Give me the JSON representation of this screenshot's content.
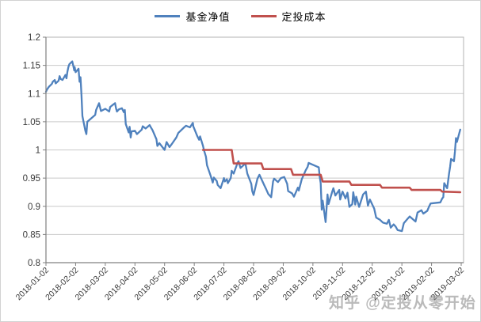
{
  "legend": {
    "items": [
      {
        "label": "基金净值",
        "color": "#4f81bd"
      },
      {
        "label": "定投成本",
        "color": "#c0504d"
      }
    ]
  },
  "watermark": {
    "text": "知乎 @定投从零开始"
  },
  "colors": {
    "plot_border": "#b3b3b3",
    "gridline": "#c9c9c9",
    "axis": "#808080",
    "tick_label": "#3a3a3a",
    "background": "#ffffff"
  },
  "chart_data": {
    "type": "line",
    "title": "",
    "xlabel": "",
    "ylabel": "",
    "grid": true,
    "legend_position": "top",
    "x_axis": {
      "tick_labels": [
        "2018-01-02",
        "2018-02-02",
        "2018-03-02",
        "2018-04-02",
        "2018-05-02",
        "2018-06-02",
        "2018-07-02",
        "2018-08-02",
        "2018-09-02",
        "2018-10-02",
        "2018-11-02",
        "2018-12-02",
        "2019-01-02",
        "2019-02-02",
        "2019-03-02"
      ],
      "label_rotation": -45
    },
    "y_axis": {
      "min": 0.8,
      "max": 1.2,
      "ticks": [
        1.2,
        1.15,
        1.1,
        1.05,
        1.0,
        0.95,
        0.9,
        0.85,
        0.8
      ],
      "tick_labels": [
        "1.2",
        "1.15",
        "1.1",
        "1.05",
        "1",
        "0.95",
        "0.9",
        "0.85",
        "0.8"
      ]
    },
    "series": [
      {
        "name": "基金净值",
        "color": "#4f81bd",
        "width": 2.3,
        "points": [
          [
            "2018-01-02",
            1.103
          ],
          [
            "2018-01-03",
            1.107
          ],
          [
            "2018-01-05",
            1.112
          ],
          [
            "2018-01-08",
            1.117
          ],
          [
            "2018-01-09",
            1.121
          ],
          [
            "2018-01-11",
            1.124
          ],
          [
            "2018-01-12",
            1.118
          ],
          [
            "2018-01-15",
            1.123
          ],
          [
            "2018-01-16",
            1.131
          ],
          [
            "2018-01-17",
            1.126
          ],
          [
            "2018-01-19",
            1.124
          ],
          [
            "2018-01-22",
            1.133
          ],
          [
            "2018-01-23",
            1.127
          ],
          [
            "2018-01-24",
            1.139
          ],
          [
            "2018-01-25",
            1.147
          ],
          [
            "2018-01-26",
            1.152
          ],
          [
            "2018-01-29",
            1.157
          ],
          [
            "2018-01-30",
            1.149
          ],
          [
            "2018-01-31",
            1.141
          ],
          [
            "2018-02-01",
            1.147
          ],
          [
            "2018-02-02",
            1.138
          ],
          [
            "2018-02-05",
            1.144
          ],
          [
            "2018-02-06",
            1.121
          ],
          [
            "2018-02-07",
            1.129
          ],
          [
            "2018-02-08",
            1.098
          ],
          [
            "2018-02-09",
            1.06
          ],
          [
            "2018-02-12",
            1.034
          ],
          [
            "2018-02-13",
            1.028
          ],
          [
            "2018-02-14",
            1.05
          ],
          [
            "2018-02-22",
            1.062
          ],
          [
            "2018-02-23",
            1.071
          ],
          [
            "2018-02-26",
            1.083
          ],
          [
            "2018-02-27",
            1.076
          ],
          [
            "2018-02-28",
            1.069
          ],
          [
            "2018-03-02",
            1.073
          ],
          [
            "2018-03-06",
            1.068
          ],
          [
            "2018-03-07",
            1.076
          ],
          [
            "2018-03-09",
            1.079
          ],
          [
            "2018-03-12",
            1.083
          ],
          [
            "2018-03-13",
            1.074
          ],
          [
            "2018-03-14",
            1.068
          ],
          [
            "2018-03-16",
            1.072
          ],
          [
            "2018-03-19",
            1.074
          ],
          [
            "2018-03-21",
            1.067
          ],
          [
            "2018-03-22",
            1.071
          ],
          [
            "2018-03-23",
            1.046
          ],
          [
            "2018-03-26",
            1.031
          ],
          [
            "2018-03-27",
            1.041
          ],
          [
            "2018-03-28",
            1.022
          ],
          [
            "2018-03-29",
            1.033
          ],
          [
            "2018-04-02",
            1.034
          ],
          [
            "2018-04-04",
            1.028
          ],
          [
            "2018-04-09",
            1.036
          ],
          [
            "2018-04-10",
            1.042
          ],
          [
            "2018-04-13",
            1.038
          ],
          [
            "2018-04-17",
            1.044
          ],
          [
            "2018-04-18",
            1.041
          ],
          [
            "2018-04-20",
            1.035
          ],
          [
            "2018-04-24",
            1.019
          ],
          [
            "2018-04-25",
            1.007
          ],
          [
            "2018-04-27",
            1.012
          ],
          [
            "2018-05-02",
            1.0
          ],
          [
            "2018-05-04",
            1.014
          ],
          [
            "2018-05-07",
            1.005
          ],
          [
            "2018-05-10",
            1.012
          ],
          [
            "2018-05-14",
            1.022
          ],
          [
            "2018-05-16",
            1.03
          ],
          [
            "2018-05-22",
            1.04
          ],
          [
            "2018-05-24",
            1.043
          ],
          [
            "2018-05-28",
            1.04
          ],
          [
            "2018-05-31",
            1.048
          ],
          [
            "2018-06-01",
            1.042
          ],
          [
            "2018-06-05",
            1.025
          ],
          [
            "2018-06-07",
            1.018
          ],
          [
            "2018-06-08",
            1.024
          ],
          [
            "2018-06-11",
            1.007
          ],
          [
            "2018-06-12",
            0.999
          ],
          [
            "2018-06-14",
            0.988
          ],
          [
            "2018-06-15",
            0.973
          ],
          [
            "2018-06-19",
            0.953
          ],
          [
            "2018-06-21",
            0.942
          ],
          [
            "2018-06-22",
            0.951
          ],
          [
            "2018-06-25",
            0.945
          ],
          [
            "2018-06-26",
            0.938
          ],
          [
            "2018-06-29",
            0.932
          ],
          [
            "2018-07-02",
            0.95
          ],
          [
            "2018-07-03",
            0.944
          ],
          [
            "2018-07-05",
            0.948
          ],
          [
            "2018-07-06",
            0.941
          ],
          [
            "2018-07-09",
            0.95
          ],
          [
            "2018-07-10",
            0.963
          ],
          [
            "2018-07-12",
            0.958
          ],
          [
            "2018-07-16",
            0.977
          ],
          [
            "2018-07-17",
            0.98
          ],
          [
            "2018-07-19",
            0.968
          ],
          [
            "2018-07-24",
            0.976
          ],
          [
            "2018-07-26",
            0.958
          ],
          [
            "2018-07-30",
            0.94
          ],
          [
            "2018-07-31",
            0.927
          ],
          [
            "2018-08-02",
            0.92
          ],
          [
            "2018-08-06",
            0.949
          ],
          [
            "2018-08-08",
            0.956
          ],
          [
            "2018-08-13",
            0.937
          ],
          [
            "2018-08-15",
            0.93
          ],
          [
            "2018-08-17",
            0.922
          ],
          [
            "2018-08-20",
            0.916
          ],
          [
            "2018-08-22",
            0.944
          ],
          [
            "2018-08-23",
            0.949
          ],
          [
            "2018-08-27",
            0.943
          ],
          [
            "2018-08-30",
            0.95
          ],
          [
            "2018-09-03",
            0.952
          ],
          [
            "2018-09-06",
            0.94
          ],
          [
            "2018-09-07",
            0.927
          ],
          [
            "2018-09-11",
            0.923
          ],
          [
            "2018-09-13",
            0.917
          ],
          [
            "2018-09-17",
            0.933
          ],
          [
            "2018-09-18",
            0.928
          ],
          [
            "2018-09-21",
            0.948
          ],
          [
            "2018-09-25",
            0.964
          ],
          [
            "2018-09-27",
            0.97
          ],
          [
            "2018-09-28",
            0.977
          ],
          [
            "2018-10-08",
            0.969
          ],
          [
            "2018-10-09",
            0.952
          ],
          [
            "2018-10-10",
            0.941
          ],
          [
            "2018-10-11",
            0.894
          ],
          [
            "2018-10-12",
            0.91
          ],
          [
            "2018-10-15",
            0.872
          ],
          [
            "2018-10-16",
            0.896
          ],
          [
            "2018-10-17",
            0.921
          ],
          [
            "2018-10-18",
            0.904
          ],
          [
            "2018-10-22",
            0.927
          ],
          [
            "2018-10-23",
            0.932
          ],
          [
            "2018-10-25",
            0.919
          ],
          [
            "2018-10-29",
            0.929
          ],
          [
            "2018-10-30",
            0.912
          ],
          [
            "2018-11-01",
            0.921
          ],
          [
            "2018-11-02",
            0.926
          ],
          [
            "2018-11-05",
            0.914
          ],
          [
            "2018-11-07",
            0.924
          ],
          [
            "2018-11-09",
            0.899
          ],
          [
            "2018-11-12",
            0.904
          ],
          [
            "2018-11-13",
            0.925
          ],
          [
            "2018-11-14",
            0.914
          ],
          [
            "2018-11-15",
            0.903
          ],
          [
            "2018-11-16",
            0.917
          ],
          [
            "2018-11-19",
            0.899
          ],
          [
            "2018-11-21",
            0.91
          ],
          [
            "2018-11-23",
            0.921
          ],
          [
            "2018-11-26",
            0.926
          ],
          [
            "2018-11-28",
            0.901
          ],
          [
            "2018-11-30",
            0.912
          ],
          [
            "2018-12-04",
            0.896
          ],
          [
            "2018-12-06",
            0.88
          ],
          [
            "2018-12-10",
            0.876
          ],
          [
            "2018-12-13",
            0.871
          ],
          [
            "2018-12-17",
            0.869
          ],
          [
            "2018-12-19",
            0.876
          ],
          [
            "2018-12-21",
            0.862
          ],
          [
            "2018-12-24",
            0.868
          ],
          [
            "2018-12-26",
            0.864
          ],
          [
            "2018-12-28",
            0.858
          ],
          [
            "2019-01-02",
            0.856
          ],
          [
            "2019-01-04",
            0.87
          ],
          [
            "2019-01-08",
            0.878
          ],
          [
            "2019-01-10",
            0.882
          ],
          [
            "2019-01-14",
            0.876
          ],
          [
            "2019-01-16",
            0.873
          ],
          [
            "2019-01-18",
            0.889
          ],
          [
            "2019-01-22",
            0.893
          ],
          [
            "2019-01-24",
            0.887
          ],
          [
            "2019-01-28",
            0.892
          ],
          [
            "2019-01-30",
            0.9
          ],
          [
            "2019-02-01",
            0.905
          ],
          [
            "2019-02-11",
            0.907
          ],
          [
            "2019-02-13",
            0.914
          ],
          [
            "2019-02-14",
            0.916
          ],
          [
            "2019-02-15",
            0.941
          ],
          [
            "2019-02-18",
            0.932
          ],
          [
            "2019-02-20",
            0.959
          ],
          [
            "2019-02-21",
            0.97
          ],
          [
            "2019-02-22",
            0.984
          ],
          [
            "2019-02-25",
            0.98
          ],
          [
            "2019-02-26",
            0.997
          ],
          [
            "2019-02-27",
            1.021
          ],
          [
            "2019-02-28",
            1.014
          ],
          [
            "2019-03-01",
            1.036
          ]
        ]
      },
      {
        "name": "定投成本",
        "color": "#c0504d",
        "width": 2.6,
        "points": [
          [
            "2018-06-11",
            1.0
          ],
          [
            "2018-07-10",
            1.0
          ],
          [
            "2018-07-12",
            0.976
          ],
          [
            "2018-08-10",
            0.976
          ],
          [
            "2018-08-12",
            0.966
          ],
          [
            "2018-09-10",
            0.966
          ],
          [
            "2018-09-12",
            0.956
          ],
          [
            "2018-10-10",
            0.956
          ],
          [
            "2018-10-12",
            0.944
          ],
          [
            "2018-11-09",
            0.944
          ],
          [
            "2018-11-11",
            0.938
          ],
          [
            "2018-12-10",
            0.938
          ],
          [
            "2018-12-12",
            0.933
          ],
          [
            "2019-01-10",
            0.933
          ],
          [
            "2019-01-12",
            0.929
          ],
          [
            "2019-02-11",
            0.929
          ],
          [
            "2019-02-13",
            0.926
          ],
          [
            "2019-03-01",
            0.925
          ]
        ]
      }
    ]
  }
}
